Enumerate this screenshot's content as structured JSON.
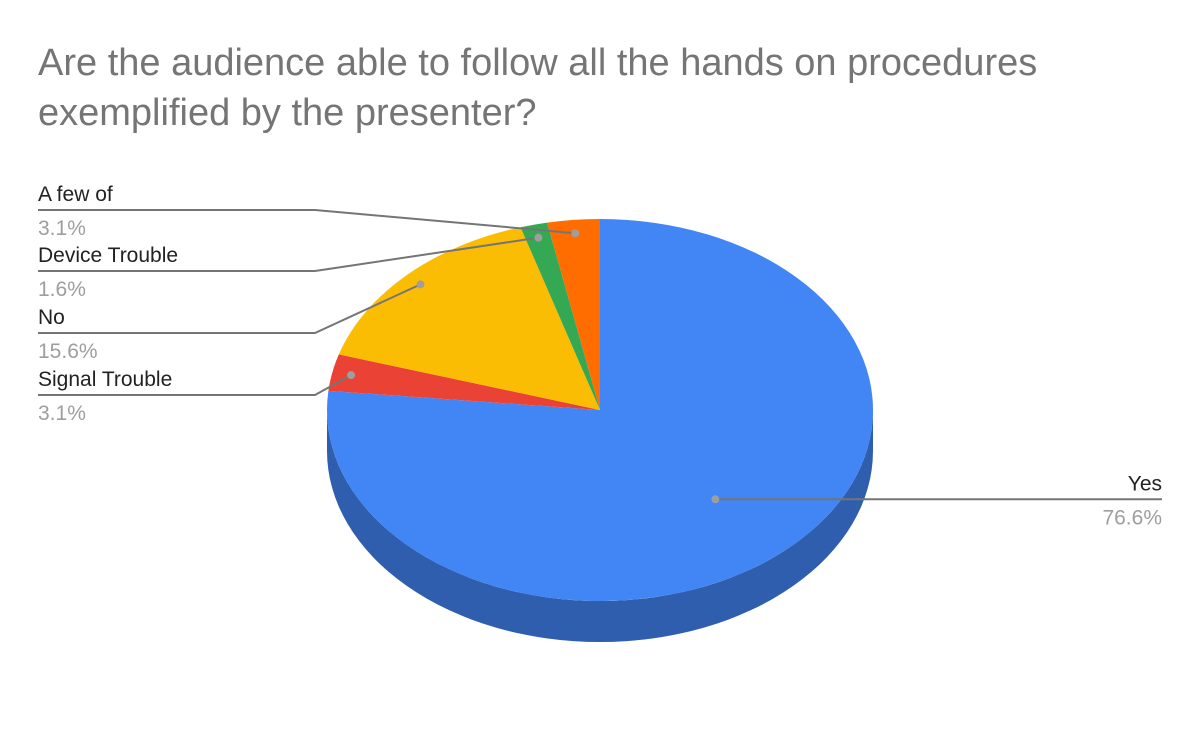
{
  "chart_data": {
    "type": "pie",
    "title": "Are the audience able to follow all the hands on procedures exemplified by the presenter?",
    "three_d": true,
    "legend": "none",
    "slices": [
      {
        "label": "Yes",
        "value": 76.6,
        "display": "76.6%",
        "color": "#4285f4",
        "side_color": "#2f5eae"
      },
      {
        "label": "Signal Trouble",
        "value": 3.1,
        "display": "3.1%",
        "color": "#ea4335",
        "side_color": "#a52f25"
      },
      {
        "label": "No",
        "value": 15.6,
        "display": "15.6%",
        "color": "#fbbc04",
        "side_color": "#b28503"
      },
      {
        "label": "Device Trouble",
        "value": 1.6,
        "display": "1.6%",
        "color": "#34a853",
        "side_color": "#24763b"
      },
      {
        "label": "A few of",
        "value": 3.1,
        "display": "3.1%",
        "color": "#ff6d01",
        "side_color": "#b34d01"
      }
    ]
  }
}
